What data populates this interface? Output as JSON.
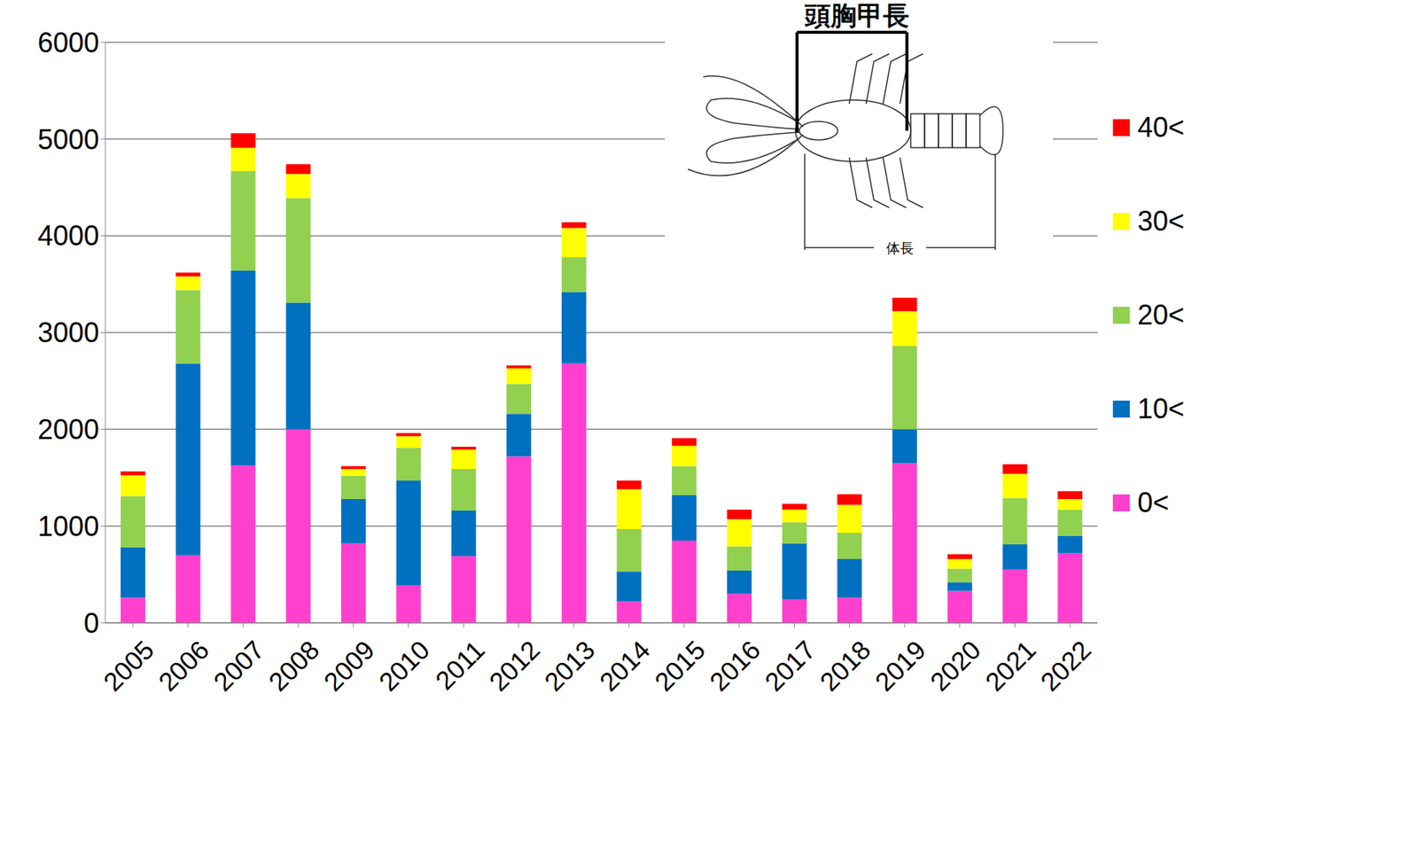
{
  "chart_data": {
    "type": "bar",
    "stacked": true,
    "categories": [
      "2005",
      "2006",
      "2007",
      "2008",
      "2009",
      "2010",
      "2011",
      "2012",
      "2013",
      "2014",
      "2015",
      "2016",
      "2017",
      "2018",
      "2019",
      "2020",
      "2021",
      "2022"
    ],
    "series": [
      {
        "name": "0<",
        "color": "#ff3fce",
        "values": [
          260,
          700,
          1630,
          2000,
          820,
          390,
          690,
          1720,
          2680,
          220,
          850,
          300,
          240,
          260,
          1650,
          330,
          550,
          720
        ]
      },
      {
        "name": "10<",
        "color": "#0070c0",
        "values": [
          520,
          1980,
          2010,
          1310,
          460,
          1080,
          470,
          440,
          740,
          310,
          470,
          240,
          580,
          400,
          350,
          90,
          260,
          180
        ]
      },
      {
        "name": "20<",
        "color": "#92d050",
        "values": [
          530,
          760,
          1030,
          1080,
          240,
          340,
          430,
          310,
          360,
          440,
          300,
          250,
          220,
          270,
          860,
          140,
          480,
          270
        ]
      },
      {
        "name": "30<",
        "color": "#ffff00",
        "values": [
          215,
          140,
          240,
          250,
          70,
          120,
          200,
          160,
          300,
          410,
          210,
          280,
          130,
          290,
          360,
          100,
          250,
          110
        ]
      },
      {
        "name": "40<",
        "color": "#ff0000",
        "values": [
          40,
          40,
          150,
          100,
          30,
          30,
          30,
          30,
          60,
          90,
          80,
          100,
          60,
          110,
          140,
          50,
          100,
          80
        ]
      }
    ],
    "ylim": [
      0,
      6000
    ],
    "yticks": [
      0,
      1000,
      2000,
      3000,
      4000,
      5000,
      6000
    ],
    "grid": true,
    "legend": "right",
    "annotations": [
      "頭胸甲長",
      "体長"
    ]
  }
}
